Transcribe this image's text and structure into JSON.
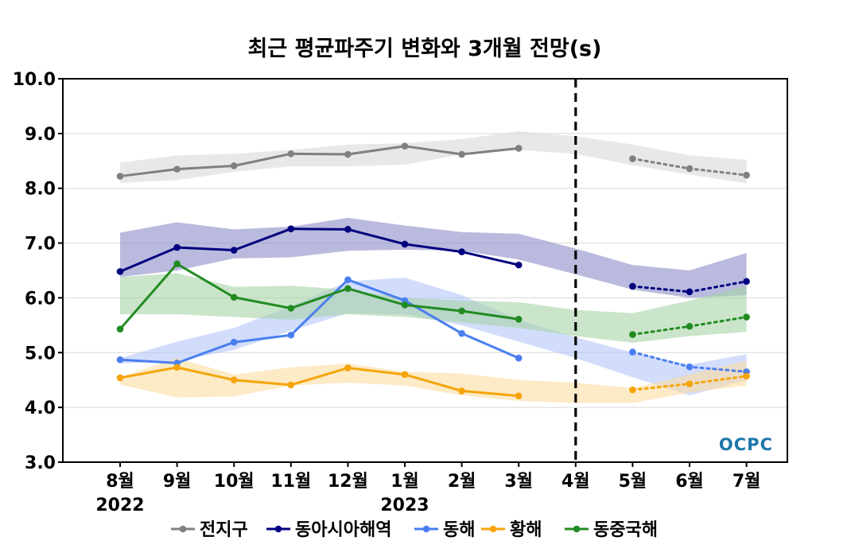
{
  "chart_data": {
    "type": "line",
    "title": "최근 평균파주기 변화와 3개월 전망(s)",
    "xlabel": "",
    "ylabel": "",
    "ylim": [
      3.0,
      10.0
    ],
    "yticks": [
      "3.0",
      "4.0",
      "5.0",
      "6.0",
      "7.0",
      "8.0",
      "9.0",
      "10.0"
    ],
    "categories": [
      "8월",
      "9월",
      "10월",
      "11월",
      "12월",
      "1월",
      "2월",
      "3월",
      "4월",
      "5월",
      "6월",
      "7월"
    ],
    "year_labels": [
      {
        "category": "8월",
        "text": "2022"
      },
      {
        "category": "1월",
        "text": "2023"
      }
    ],
    "forecast_divider": "4월",
    "grid": "horizontal",
    "legend_position": "bottom",
    "logo_text": "OCPC",
    "series": [
      {
        "name": "전지구",
        "color": "#808080",
        "band_color": "#d9d9d9",
        "observed": [
          8.22,
          8.35,
          8.41,
          8.63,
          8.62,
          8.77,
          8.62,
          8.73,
          null,
          null,
          null,
          null
        ],
        "forecast": [
          null,
          null,
          null,
          null,
          null,
          null,
          null,
          null,
          null,
          8.54,
          8.36,
          8.24
        ],
        "band_low": [
          8.1,
          8.15,
          8.3,
          8.4,
          8.4,
          8.43,
          8.62,
          8.7,
          8.63,
          8.42,
          8.25,
          8.09
        ],
        "band_high": [
          8.47,
          8.6,
          8.63,
          8.7,
          8.8,
          8.82,
          8.9,
          9.04,
          8.95,
          8.8,
          8.6,
          8.52
        ]
      },
      {
        "name": "동아시아해역",
        "color": "#00007f",
        "band_color": "#8c8cc8",
        "observed": [
          6.48,
          6.92,
          6.87,
          7.26,
          7.25,
          6.98,
          6.84,
          6.6,
          null,
          null,
          null,
          null
        ],
        "forecast": [
          null,
          null,
          null,
          null,
          null,
          null,
          null,
          null,
          null,
          6.21,
          6.11,
          6.3
        ],
        "band_low": [
          6.38,
          6.5,
          6.72,
          6.74,
          6.86,
          6.88,
          6.86,
          6.7,
          6.43,
          6.15,
          6.0,
          6.05
        ],
        "band_high": [
          7.19,
          7.38,
          7.25,
          7.3,
          7.46,
          7.32,
          7.2,
          7.17,
          6.9,
          6.6,
          6.5,
          6.82
        ]
      },
      {
        "name": "동해",
        "color": "#4a7ff0",
        "band_color": "#b4c6fa",
        "observed": [
          4.87,
          4.81,
          5.19,
          5.32,
          6.33,
          5.95,
          5.35,
          4.9,
          null,
          null,
          null,
          null
        ],
        "forecast": [
          null,
          null,
          null,
          null,
          null,
          null,
          null,
          null,
          null,
          5.01,
          4.74,
          4.65
        ],
        "band_low": [
          4.8,
          4.85,
          5.05,
          5.4,
          5.72,
          5.7,
          5.5,
          5.2,
          4.9,
          4.55,
          4.22,
          4.5
        ],
        "band_high": [
          4.9,
          5.2,
          5.45,
          5.85,
          6.3,
          6.37,
          6.05,
          5.6,
          5.28,
          5.0,
          4.78,
          4.97
        ]
      },
      {
        "name": "황해",
        "color": "#f5a50a",
        "band_color": "#fbdca0",
        "observed": [
          4.54,
          4.73,
          4.5,
          4.41,
          4.72,
          4.6,
          4.3,
          4.21,
          null,
          null,
          null,
          null
        ],
        "forecast": [
          null,
          null,
          null,
          null,
          null,
          null,
          null,
          null,
          null,
          4.32,
          4.43,
          4.57
        ],
        "band_low": [
          4.42,
          4.18,
          4.2,
          4.4,
          4.45,
          4.4,
          4.22,
          4.12,
          4.08,
          4.08,
          4.27,
          4.4
        ],
        "band_high": [
          4.55,
          4.9,
          4.6,
          4.73,
          4.8,
          4.65,
          4.62,
          4.5,
          4.45,
          4.35,
          4.6,
          4.85
        ]
      },
      {
        "name": "동중국해",
        "color": "#228b22",
        "band_color": "#a6d4a6",
        "observed": [
          5.43,
          6.62,
          6.01,
          5.81,
          6.17,
          5.87,
          5.76,
          5.61,
          null,
          null,
          null,
          null
        ],
        "forecast": [
          null,
          null,
          null,
          null,
          null,
          null,
          null,
          null,
          null,
          5.33,
          5.48,
          5.65
        ],
        "band_low": [
          5.7,
          5.7,
          5.65,
          5.6,
          5.7,
          5.65,
          5.55,
          5.45,
          5.3,
          5.18,
          5.3,
          5.38
        ],
        "band_high": [
          6.38,
          6.45,
          6.2,
          6.22,
          6.15,
          6.0,
          5.95,
          5.92,
          5.78,
          5.72,
          5.95,
          6.22
        ]
      }
    ]
  }
}
